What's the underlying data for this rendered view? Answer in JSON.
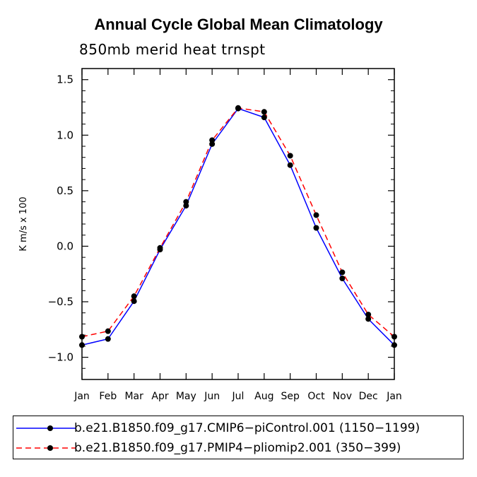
{
  "title": "Annual Cycle Global Mean Climatology",
  "subtitle": "850mb merid heat trnspt",
  "chart_data": {
    "type": "line",
    "title": "Annual Cycle Global Mean Climatology",
    "subtitle": "850mb merid heat trnspt",
    "xlabel": "",
    "ylabel": "K m/s x 100",
    "categories": [
      "Jan",
      "Feb",
      "Mar",
      "Apr",
      "May",
      "Jun",
      "Jul",
      "Aug",
      "Sep",
      "Oct",
      "Nov",
      "Dec",
      "Jan"
    ],
    "ylim": [
      -1.2,
      1.6
    ],
    "yticks": [
      -1.0,
      -0.5,
      0.0,
      0.5,
      1.0,
      1.5
    ],
    "ytick_labels": [
      "−1.0",
      "−0.5",
      "0.0",
      "0.5",
      "1.0",
      "1.5"
    ],
    "series": [
      {
        "name": "b.e21.B1850.f09_g17.CMIP6−piControl.001 (1150−1199)",
        "color": "#0000ff",
        "style": "solid",
        "values": [
          -0.89,
          -0.835,
          -0.495,
          -0.03,
          0.365,
          0.92,
          1.24,
          1.16,
          0.73,
          0.165,
          -0.29,
          -0.655,
          -0.89
        ]
      },
      {
        "name": "b.e21.B1850.f09_g17.PMIP4−pliomip2.001 (350−399)",
        "color": "#ff0000",
        "style": "dashed",
        "values": [
          -0.815,
          -0.765,
          -0.45,
          -0.015,
          0.4,
          0.955,
          1.245,
          1.21,
          0.815,
          0.28,
          -0.235,
          -0.615,
          -0.815
        ]
      }
    ],
    "legend_position": "bottom"
  }
}
